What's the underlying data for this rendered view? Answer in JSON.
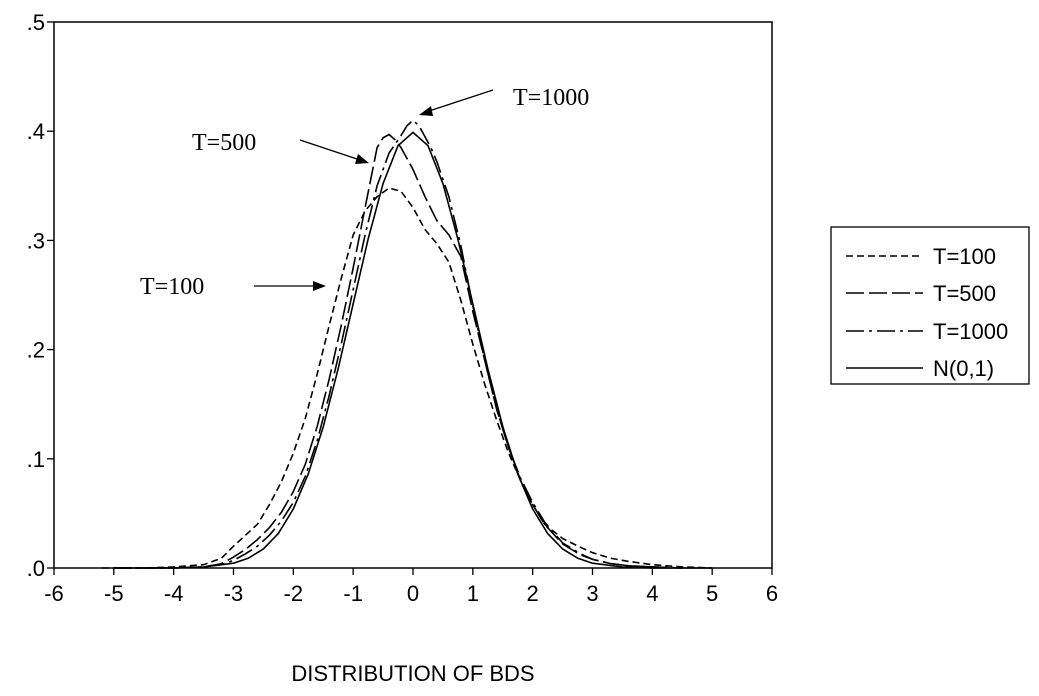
{
  "chart_data": {
    "type": "line",
    "xlabel": "DISTRIBUTION OF BDS",
    "ylabel": "",
    "xlim": [
      -6,
      6
    ],
    "ylim": [
      0,
      0.5
    ],
    "x_ticks": [
      -6,
      -5,
      -4,
      -3,
      -2,
      -1,
      0,
      1,
      2,
      3,
      4,
      5,
      6
    ],
    "x_tick_labels": [
      "-6",
      "-5",
      "-4",
      "-3",
      "-2",
      "-1",
      "0",
      "1",
      "2",
      "3",
      "4",
      "5",
      "6"
    ],
    "y_ticks": [
      0,
      0.1,
      0.2,
      0.3,
      0.4,
      0.5
    ],
    "y_tick_labels": [
      ".0",
      ".1",
      ".2",
      ".3",
      ".4",
      ".5"
    ],
    "grid": false,
    "legend_position": "right",
    "series": [
      {
        "name": "T=100",
        "dash": "dashed",
        "x": [
          -5.2,
          -4.5,
          -4.0,
          -3.5,
          -3.2,
          -3.0,
          -2.8,
          -2.6,
          -2.4,
          -2.2,
          -2.0,
          -1.8,
          -1.6,
          -1.4,
          -1.2,
          -1.0,
          -0.8,
          -0.6,
          -0.4,
          -0.2,
          0.0,
          0.2,
          0.4,
          0.6,
          0.8,
          1.0,
          1.2,
          1.4,
          1.6,
          1.8,
          2.0,
          2.2,
          2.5,
          2.8,
          3.0,
          3.3,
          3.6,
          4.0,
          4.5,
          5.0
        ],
        "y": [
          0.0,
          0.0,
          0.001,
          0.003,
          0.009,
          0.02,
          0.03,
          0.04,
          0.058,
          0.079,
          0.105,
          0.137,
          0.178,
          0.222,
          0.265,
          0.305,
          0.327,
          0.34,
          0.348,
          0.345,
          0.33,
          0.31,
          0.297,
          0.28,
          0.245,
          0.205,
          0.168,
          0.135,
          0.105,
          0.08,
          0.058,
          0.04,
          0.027,
          0.019,
          0.014,
          0.009,
          0.006,
          0.003,
          0.001,
          0.0
        ]
      },
      {
        "name": "T=500",
        "dash": "long-dash",
        "x": [
          -5.0,
          -4.0,
          -3.5,
          -3.2,
          -3.0,
          -2.8,
          -2.6,
          -2.4,
          -2.2,
          -2.0,
          -1.8,
          -1.6,
          -1.4,
          -1.2,
          -1.0,
          -0.8,
          -0.6,
          -0.5,
          -0.4,
          -0.3,
          -0.2,
          -0.1,
          0.0,
          0.2,
          0.4,
          0.6,
          0.8,
          1.0,
          1.2,
          1.4,
          1.6,
          1.8,
          2.0,
          2.2,
          2.5,
          2.8,
          3.0,
          3.3,
          3.6,
          4.0,
          4.5
        ],
        "y": [
          0.0,
          0.0,
          0.001,
          0.004,
          0.01,
          0.017,
          0.026,
          0.037,
          0.051,
          0.07,
          0.095,
          0.13,
          0.173,
          0.222,
          0.275,
          0.33,
          0.385,
          0.394,
          0.397,
          0.392,
          0.385,
          0.375,
          0.365,
          0.34,
          0.318,
          0.305,
          0.285,
          0.235,
          0.19,
          0.145,
          0.11,
          0.08,
          0.058,
          0.04,
          0.022,
          0.012,
          0.008,
          0.004,
          0.002,
          0.001,
          0.0
        ]
      },
      {
        "name": "T=1000",
        "dash": "dash-dot",
        "x": [
          -5.0,
          -4.0,
          -3.5,
          -3.2,
          -3.0,
          -2.8,
          -2.6,
          -2.4,
          -2.2,
          -2.0,
          -1.8,
          -1.6,
          -1.4,
          -1.2,
          -1.0,
          -0.8,
          -0.6,
          -0.4,
          -0.2,
          -0.1,
          0.0,
          0.1,
          0.2,
          0.3,
          0.4,
          0.6,
          0.8,
          1.0,
          1.2,
          1.4,
          1.6,
          1.8,
          2.0,
          2.2,
          2.5,
          2.8,
          3.0,
          3.3,
          3.6,
          4.0,
          4.5
        ],
        "y": [
          0.0,
          0.0,
          0.001,
          0.003,
          0.007,
          0.013,
          0.02,
          0.03,
          0.043,
          0.06,
          0.084,
          0.117,
          0.158,
          0.205,
          0.255,
          0.305,
          0.35,
          0.38,
          0.396,
          0.405,
          0.41,
          0.405,
          0.395,
          0.385,
          0.372,
          0.34,
          0.295,
          0.24,
          0.19,
          0.145,
          0.11,
          0.082,
          0.06,
          0.042,
          0.023,
          0.013,
          0.008,
          0.004,
          0.002,
          0.001,
          0.0
        ]
      },
      {
        "name": "N(0,1)",
        "dash": "solid",
        "x": [
          -5.0,
          -4.5,
          -4.0,
          -3.5,
          -3.0,
          -2.75,
          -2.5,
          -2.25,
          -2.0,
          -1.75,
          -1.5,
          -1.25,
          -1.0,
          -0.75,
          -0.5,
          -0.25,
          0.0,
          0.25,
          0.5,
          0.75,
          1.0,
          1.25,
          1.5,
          1.75,
          2.0,
          2.25,
          2.5,
          2.75,
          3.0,
          3.5,
          4.0,
          4.5,
          5.0
        ],
        "y": [
          0.0,
          0.0,
          0.0001,
          0.0009,
          0.0044,
          0.0091,
          0.0175,
          0.0317,
          0.054,
          0.0863,
          0.1295,
          0.1826,
          0.242,
          0.3011,
          0.3521,
          0.3867,
          0.3989,
          0.3867,
          0.3521,
          0.3011,
          0.242,
          0.1826,
          0.1295,
          0.0863,
          0.054,
          0.0317,
          0.0175,
          0.0091,
          0.0044,
          0.0009,
          0.0001,
          0.0,
          0.0
        ]
      }
    ],
    "annotations": [
      {
        "text": "T=1000",
        "points_to_series": "T=1000"
      },
      {
        "text": "T=500",
        "points_to_series": "T=500"
      },
      {
        "text": "T=100",
        "points_to_series": "T=100"
      }
    ]
  }
}
